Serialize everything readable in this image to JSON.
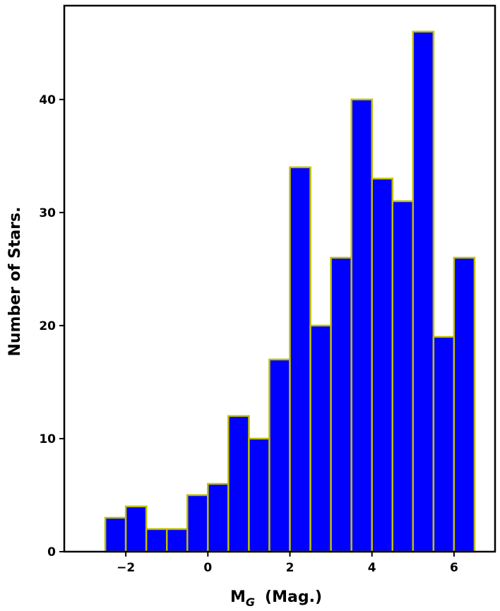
{
  "chart_data": {
    "type": "bar",
    "subtype": "histogram",
    "xlabel_main": "M",
    "xlabel_sub": "G",
    "xlabel_rest": "(Mag.)",
    "ylabel": "Number of Stars.",
    "xlim": [
      -3.5,
      7.0
    ],
    "ylim": [
      0,
      48.3
    ],
    "xticks": [
      -2,
      0,
      2,
      4,
      6
    ],
    "xtick_labels": [
      "−2",
      "0",
      "2",
      "4",
      "6"
    ],
    "yticks": [
      0,
      10,
      20,
      30,
      40
    ],
    "yticks_labels": [
      "0",
      "10",
      "20",
      "30",
      "40"
    ],
    "bin_edges": [
      -2.5,
      -2.0,
      -1.5,
      -1.0,
      -0.5,
      0.0,
      0.5,
      1.0,
      1.5,
      2.0,
      2.5,
      3.0,
      3.5,
      4.0,
      4.5,
      5.0,
      5.5,
      6.0,
      6.5
    ],
    "values": [
      3,
      4,
      2,
      2,
      5,
      6,
      12,
      10,
      17,
      34,
      20,
      26,
      40,
      33,
      31,
      46,
      19,
      26
    ],
    "bar_fill": "#0000ff",
    "bar_edge": "#bfbf00",
    "grid": false
  }
}
